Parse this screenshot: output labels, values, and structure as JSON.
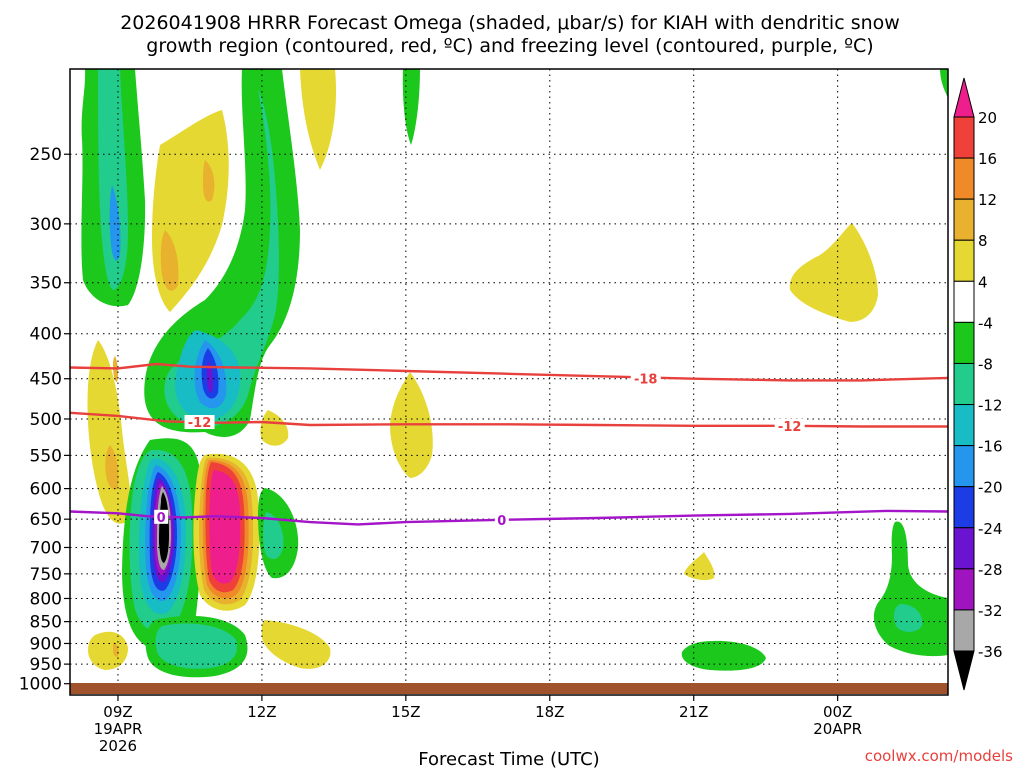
{
  "chart_data": {
    "type": "heatmap",
    "title_line1": "2026041908 HRRR Forecast Omega (shaded, μbar/s) for KIAH with dendritic snow",
    "title_line2": "growth region (contoured, red, ºC) and freezing level (contoured, purple, ºC)",
    "xlabel": "Forecast Time (UTC)",
    "credit": "coolwx.com/models",
    "x_range_hours": [
      8,
      26.3
    ],
    "y_range_mb": [
      200,
      1030
    ],
    "y_scale": "log",
    "grid": "dotted",
    "y_ticks": [
      250,
      300,
      350,
      400,
      450,
      500,
      550,
      600,
      650,
      700,
      750,
      800,
      850,
      900,
      950,
      1000
    ],
    "x_ticks": [
      {
        "hour": 9,
        "label": "09Z",
        "sub1": "19APR",
        "sub2": "2026"
      },
      {
        "hour": 12,
        "label": "12Z"
      },
      {
        "hour": 15,
        "label": "15Z"
      },
      {
        "hour": 18,
        "label": "18Z"
      },
      {
        "hour": 21,
        "label": "21Z"
      },
      {
        "hour": 24,
        "label": "00Z",
        "sub1": "20APR"
      }
    ],
    "colorbar": {
      "labels": [
        "20",
        "16",
        "12",
        "8",
        "4",
        "-4",
        "-8",
        "-12",
        "-16",
        "-20",
        "-24",
        "-28",
        "-32",
        "-36"
      ],
      "colors": [
        "#ee1e8c",
        "#f0403a",
        "#f08a28",
        "#e8b12e",
        "#e6d832",
        "#ffffff",
        "#1dc81d",
        "#22cc8c",
        "#18bcc4",
        "#2496ee",
        "#1c3ce6",
        "#6a14d2",
        "#a014c0",
        "#a8a8a8",
        "#000000"
      ]
    },
    "omega_areas": [
      {
        "value": -8,
        "color": "#1dc81d",
        "hour": 8.9,
        "mb": 250,
        "note": "upper-level ascent column"
      },
      {
        "value": -12,
        "color": "#22cc8c",
        "hour": 9.0,
        "mb": 300
      },
      {
        "value": -16,
        "color": "#2496ee",
        "hour": 9.0,
        "mb": 310
      },
      {
        "value": 4,
        "color": "#e6d832",
        "hour": 10.9,
        "mb": 290
      },
      {
        "value": 8,
        "color": "#e8b12e",
        "hour": 10.0,
        "mb": 340
      },
      {
        "value": -24,
        "color": "#1c3ce6",
        "hour": 10.7,
        "mb": 450
      },
      {
        "value": 4,
        "color": "#e6d832",
        "hour": 13.3,
        "mb": 230
      },
      {
        "value": 4,
        "color": "#e6d832",
        "hour": 15.0,
        "mb": 520
      },
      {
        "value": -36,
        "color": "#000000",
        "hour": 10.0,
        "mb": 690,
        "note": "strongest ascent"
      },
      {
        "value": 20,
        "color": "#ee1e8c",
        "hour": 11.2,
        "mb": 700,
        "note": "strongest descent"
      },
      {
        "value": -12,
        "color": "#22cc8c",
        "hour": 10.5,
        "mb": 940
      },
      {
        "value": 4,
        "color": "#e6d832",
        "hour": 12.7,
        "mb": 930
      },
      {
        "value": 4,
        "color": "#e6d832",
        "hour": 20.9,
        "mb": 760
      },
      {
        "value": -8,
        "color": "#1dc81d",
        "hour": 21.2,
        "mb": 960
      },
      {
        "value": 4,
        "color": "#e6d832",
        "hour": 23.8,
        "mb": 370
      },
      {
        "value": -12,
        "color": "#22cc8c",
        "hour": 25.1,
        "mb": 880
      }
    ],
    "contours": [
      {
        "name": "-18C dendritic upper bound",
        "label": "-18",
        "color": "#e8403c",
        "hours": [
          8.0,
          9.0,
          9.8,
          10.5,
          11.5,
          13.0,
          15.0,
          17.0,
          19.0,
          21.0,
          23.0,
          24.5,
          26.3
        ],
        "mb": [
          437,
          438,
          433,
          436,
          437,
          438,
          441,
          444,
          447,
          450,
          452,
          452,
          449
        ]
      },
      {
        "name": "-12C dendritic lower bound",
        "label": "-12",
        "color": "#e8403c",
        "hours": [
          8.0,
          9.0,
          10.0,
          11.0,
          12.0,
          13.0,
          15.0,
          17.0,
          19.0,
          21.0,
          23.0,
          24.5,
          26.3
        ],
        "mb": [
          492,
          496,
          503,
          505,
          504,
          508,
          507,
          507,
          508,
          509,
          509,
          510,
          510
        ]
      },
      {
        "name": "0C freezing level",
        "label": "0",
        "color": "#a414c8",
        "hours": [
          8.0,
          9.0,
          9.6,
          10.4,
          11.0,
          12.0,
          13.0,
          14.0,
          15.0,
          17.0,
          19.0,
          21.0,
          23.0,
          25.0,
          26.3
        ],
        "mb": [
          637,
          640,
          645,
          647,
          645,
          648,
          655,
          659,
          655,
          651,
          648,
          644,
          641,
          636,
          637
        ]
      }
    ],
    "contour_labels": [
      {
        "text": "-18",
        "hour": 20.0,
        "mb": 450,
        "color": "#e8403c"
      },
      {
        "text": "-12",
        "hour": 10.7,
        "mb": 504,
        "color": "#e8403c"
      },
      {
        "text": "-12",
        "hour": 23.0,
        "mb": 509,
        "color": "#e8403c"
      },
      {
        "text": "0",
        "hour": 9.9,
        "mb": 646,
        "color": "#a414c8"
      },
      {
        "text": "0",
        "hour": 17.0,
        "mb": 651,
        "color": "#a414c8"
      }
    ],
    "ground": {
      "color": "#a0522d",
      "top_mb": 1013
    }
  }
}
